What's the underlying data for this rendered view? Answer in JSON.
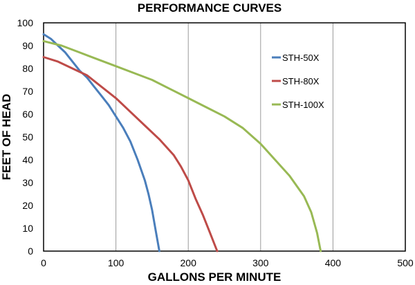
{
  "chart_data": {
    "type": "line",
    "title": "PERFORMANCE CURVES",
    "xlabel": "GALLONS PER MINUTE",
    "ylabel": "FEET OF HEAD",
    "xlim": [
      0,
      500
    ],
    "ylim": [
      0,
      100
    ],
    "x_ticks": [
      "0",
      "100",
      "200",
      "300",
      "400",
      "500"
    ],
    "y_ticks": [
      "0",
      "10",
      "20",
      "30",
      "40",
      "50",
      "60",
      "70",
      "80",
      "90",
      "100"
    ],
    "grid": "vertical",
    "legend_position": "right",
    "series": [
      {
        "name": "STH-50X",
        "color": "#4a7ebb",
        "points": [
          [
            0,
            95
          ],
          [
            10,
            93
          ],
          [
            20,
            90
          ],
          [
            30,
            87
          ],
          [
            40,
            83
          ],
          [
            50,
            79
          ],
          [
            60,
            76
          ],
          [
            70,
            72
          ],
          [
            80,
            68
          ],
          [
            90,
            64
          ],
          [
            100,
            59
          ],
          [
            110,
            54
          ],
          [
            120,
            48
          ],
          [
            130,
            40
          ],
          [
            140,
            31
          ],
          [
            145,
            25
          ],
          [
            150,
            18
          ],
          [
            155,
            9
          ],
          [
            160,
            0
          ]
        ]
      },
      {
        "name": "STH-80X",
        "color": "#be4b48",
        "points": [
          [
            0,
            85
          ],
          [
            20,
            83
          ],
          [
            40,
            80
          ],
          [
            60,
            77
          ],
          [
            80,
            72
          ],
          [
            100,
            67
          ],
          [
            120,
            61
          ],
          [
            140,
            55
          ],
          [
            160,
            49
          ],
          [
            180,
            42
          ],
          [
            190,
            37
          ],
          [
            200,
            31
          ],
          [
            210,
            23
          ],
          [
            220,
            16
          ],
          [
            230,
            8
          ],
          [
            240,
            0
          ]
        ]
      },
      {
        "name": "STH-100X",
        "color": "#98b954",
        "points": [
          [
            0,
            92
          ],
          [
            25,
            90
          ],
          [
            50,
            87
          ],
          [
            75,
            84
          ],
          [
            100,
            81
          ],
          [
            125,
            78
          ],
          [
            150,
            75
          ],
          [
            175,
            71
          ],
          [
            200,
            67
          ],
          [
            225,
            63
          ],
          [
            250,
            59
          ],
          [
            275,
            54
          ],
          [
            300,
            47
          ],
          [
            320,
            40
          ],
          [
            340,
            33
          ],
          [
            360,
            24
          ],
          [
            370,
            17
          ],
          [
            378,
            8
          ],
          [
            383,
            0
          ]
        ]
      }
    ]
  }
}
